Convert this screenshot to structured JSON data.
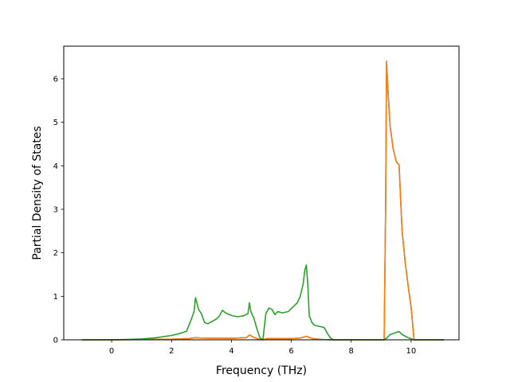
{
  "chart_data": {
    "type": "line",
    "title": "",
    "xlabel": "Frequency (THz)",
    "ylabel": "Partial Density of States",
    "xlim": [
      -1.6,
      11.6
    ],
    "ylim": [
      0,
      6.75
    ],
    "xticks": [
      0,
      2,
      4,
      6,
      8,
      10
    ],
    "yticks": [
      0,
      1,
      2,
      3,
      4,
      5,
      6
    ],
    "grid": false,
    "legend": "none",
    "series": [
      {
        "color": "#1f77b4",
        "x": [
          -1.0,
          0.0,
          1.0,
          2.0,
          2.6,
          2.8,
          3.0,
          3.5,
          4.0,
          4.5,
          4.6,
          4.8,
          5.0,
          5.2,
          5.5,
          6.0,
          6.3,
          6.5,
          6.7,
          7.0,
          7.3,
          8.0,
          9.0,
          9.1,
          9.15,
          9.18,
          9.22,
          9.3,
          9.4,
          9.5,
          9.6,
          9.7,
          9.8,
          9.9,
          10.0,
          10.1,
          11.1
        ],
        "y": [
          0.0,
          0.0,
          0.005,
          0.015,
          0.03,
          0.05,
          0.04,
          0.035,
          0.035,
          0.05,
          0.11,
          0.04,
          0.0,
          0.03,
          0.03,
          0.03,
          0.04,
          0.08,
          0.03,
          0.01,
          0.0,
          0.0,
          0.0,
          0.0,
          3.0,
          6.4,
          5.8,
          4.9,
          4.4,
          4.1,
          4.02,
          2.5,
          1.8,
          1.25,
          0.75,
          0.0,
          0.0
        ]
      },
      {
        "color": "#ff7f0e",
        "x": [
          -1.0,
          0.0,
          1.0,
          2.0,
          2.6,
          2.8,
          3.0,
          3.5,
          4.0,
          4.5,
          4.6,
          4.8,
          5.0,
          5.2,
          5.5,
          6.0,
          6.3,
          6.5,
          6.7,
          7.0,
          7.3,
          8.0,
          9.0,
          9.1,
          9.15,
          9.18,
          9.22,
          9.3,
          9.4,
          9.5,
          9.6,
          9.7,
          9.8,
          9.9,
          10.0,
          10.1,
          11.1
        ],
        "y": [
          0.0,
          0.0,
          0.005,
          0.015,
          0.03,
          0.05,
          0.04,
          0.035,
          0.035,
          0.05,
          0.11,
          0.04,
          0.0,
          0.03,
          0.03,
          0.03,
          0.04,
          0.08,
          0.03,
          0.01,
          0.0,
          0.0,
          0.0,
          0.0,
          3.0,
          6.4,
          5.8,
          4.9,
          4.4,
          4.1,
          4.02,
          2.5,
          1.8,
          1.25,
          0.75,
          0.0,
          0.0
        ]
      },
      {
        "color": "#2ca02c",
        "x": [
          -1.0,
          0.0,
          0.5,
          1.0,
          1.5,
          2.0,
          2.3,
          2.5,
          2.65,
          2.75,
          2.8,
          2.9,
          3.0,
          3.1,
          3.2,
          3.3,
          3.5,
          3.6,
          3.7,
          3.8,
          4.0,
          4.2,
          4.4,
          4.55,
          4.6,
          4.65,
          4.75,
          4.85,
          4.95,
          5.05,
          5.15,
          5.25,
          5.35,
          5.45,
          5.55,
          5.7,
          5.9,
          6.0,
          6.2,
          6.3,
          6.4,
          6.45,
          6.5,
          6.55,
          6.6,
          6.7,
          6.8,
          7.0,
          7.1,
          7.2,
          7.3,
          7.4,
          8.0,
          9.0,
          9.1,
          9.2,
          9.3,
          9.5,
          9.6,
          9.7,
          9.9,
          10.1,
          11.1
        ],
        "y": [
          0.0,
          0.0,
          0.01,
          0.02,
          0.05,
          0.1,
          0.15,
          0.2,
          0.45,
          0.65,
          0.97,
          0.7,
          0.6,
          0.4,
          0.37,
          0.4,
          0.48,
          0.55,
          0.68,
          0.62,
          0.56,
          0.53,
          0.55,
          0.6,
          0.85,
          0.65,
          0.5,
          0.25,
          0.05,
          0.0,
          0.6,
          0.73,
          0.7,
          0.58,
          0.65,
          0.62,
          0.65,
          0.72,
          0.85,
          1.0,
          1.3,
          1.6,
          1.72,
          1.3,
          0.55,
          0.38,
          0.33,
          0.3,
          0.28,
          0.15,
          0.05,
          0.0,
          0.0,
          0.0,
          0.0,
          0.05,
          0.12,
          0.17,
          0.19,
          0.12,
          0.05,
          0.0,
          0.0
        ]
      }
    ]
  }
}
